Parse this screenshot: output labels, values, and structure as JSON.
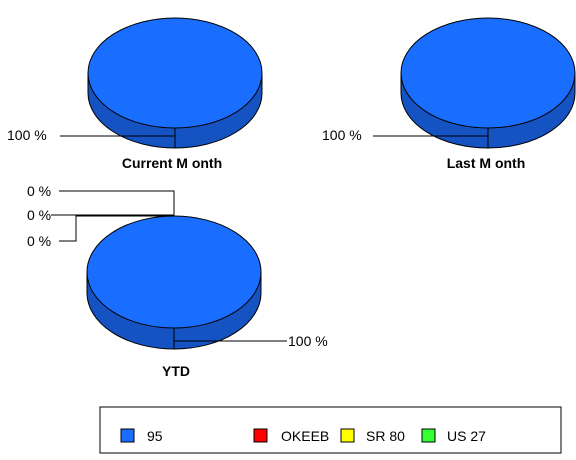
{
  "chart_data": [
    {
      "type": "pie",
      "title": "Current M onth",
      "categories": [
        "95",
        "OKEEB",
        "SR 80",
        "US 27"
      ],
      "values": [
        100,
        0,
        0,
        0
      ],
      "data_labels": [
        "100 %"
      ]
    },
    {
      "type": "pie",
      "title": "Last M onth",
      "categories": [
        "95",
        "OKEEB",
        "SR 80",
        "US 27"
      ],
      "values": [
        100,
        0,
        0,
        0
      ],
      "data_labels": [
        "100 %"
      ]
    },
    {
      "type": "pie",
      "title": "YTD",
      "categories": [
        "95",
        "OKEEB",
        "SR 80",
        "US 27"
      ],
      "values": [
        100,
        0,
        0,
        0
      ],
      "data_labels": [
        "100 %",
        "0 %",
        "0 %",
        "0 %"
      ]
    }
  ],
  "legend": {
    "placement": "bottom",
    "items": [
      {
        "label": "95",
        "color": "#1a6eff"
      },
      {
        "label": "OKEEB",
        "color": "#ff0000"
      },
      {
        "label": "SR 80",
        "color": "#ffff00"
      },
      {
        "label": "US 27",
        "color": "#33ff33"
      }
    ]
  },
  "colors": {
    "pie_top": "#1a6eff",
    "pie_side": "#1552c2"
  }
}
